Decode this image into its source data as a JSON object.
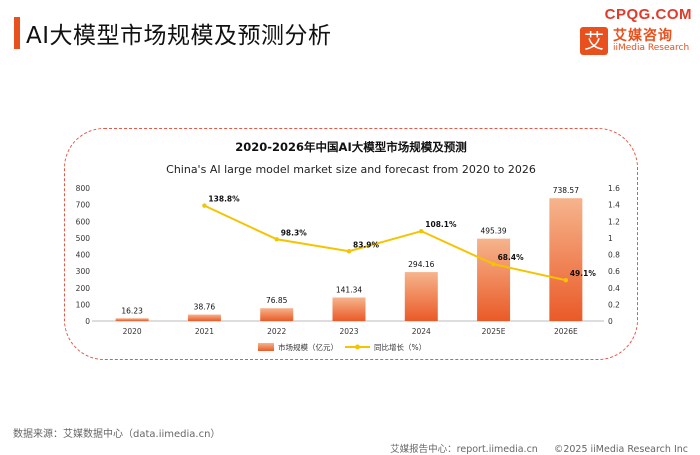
{
  "header": {
    "title": "AI大模型市场规模及预测分析",
    "watermark": "CPQG.COM",
    "logo_char": "艾",
    "logo_cn": "艾媒咨询",
    "logo_en": "iiMedia Research"
  },
  "footer": {
    "source": "数据来源：艾媒数据中心（data.iimedia.cn）",
    "report_center": "艾媒报告中心：report.iimedia.cn",
    "copyright": "©2025  iiMedia Research  Inc"
  },
  "colors": {
    "accent": "#e8501d",
    "bar_top": "#f6b48c",
    "bar_bottom": "#ea5a28",
    "line": "#f5c400"
  },
  "chart_data": {
    "type": "bar",
    "title": "2020-2026年中国AI大模型市场规模及预测",
    "subtitle": "China's AI large model market size and forecast from 2020 to 2026",
    "categories": [
      "2020",
      "2021",
      "2022",
      "2023",
      "2024",
      "2025E",
      "2026E"
    ],
    "series": [
      {
        "name": "市场规模（亿元）",
        "type": "bar",
        "axis": "left",
        "values": [
          16.23,
          38.76,
          76.85,
          141.34,
          294.16,
          495.39,
          738.57
        ],
        "labels": [
          "16.23",
          "38.76",
          "76.85",
          "141.34",
          "294.16",
          "495.39",
          "738.57"
        ]
      },
      {
        "name": "同比增长（%）",
        "type": "line",
        "axis": "right",
        "values": [
          null,
          1.388,
          0.983,
          0.839,
          1.081,
          0.684,
          0.491
        ],
        "labels": [
          null,
          "138.8%",
          "98.3%",
          "83.9%",
          "108.1%",
          "68.4%",
          "49.1%"
        ]
      }
    ],
    "ylim_left": [
      0,
      800
    ],
    "yticks_left": [
      "0",
      "100",
      "200",
      "300",
      "400",
      "500",
      "600",
      "700",
      "800"
    ],
    "ylim_right": [
      0,
      1.6
    ],
    "yticks_right": [
      "0",
      "0.2",
      "0.4",
      "0.6",
      "0.8",
      "1",
      "1.2",
      "1.4",
      "1.6"
    ],
    "legend_position": "bottom-center",
    "grid": false
  }
}
